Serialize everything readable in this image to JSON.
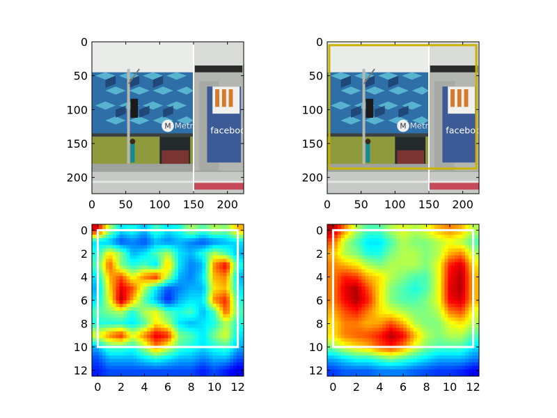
{
  "figure": {
    "panels": 4,
    "layout": "2x2"
  },
  "chart_data": [
    {
      "type": "image",
      "content": "street-photo",
      "scene_labels": [
        "Metro",
        "faceboo"
      ],
      "xlim": [
        0,
        224
      ],
      "ylim": [
        224,
        0
      ],
      "xticks": [
        0,
        50,
        100,
        150,
        200
      ],
      "yticks": [
        0,
        50,
        100,
        150,
        200
      ],
      "xtick_labels": [
        "0",
        "50",
        "100",
        "150",
        "200"
      ],
      "ytick_labels": [
        "0",
        "50",
        "100",
        "150",
        "200"
      ],
      "annotations": [
        {
          "kind": "vline",
          "x": 150,
          "color": "#ffffff"
        }
      ]
    },
    {
      "type": "image",
      "content": "street-photo",
      "scene_labels": [
        "Metro",
        "faceboo"
      ],
      "xlim": [
        0,
        224
      ],
      "ylim": [
        224,
        0
      ],
      "xticks": [
        0,
        50,
        100,
        150,
        200
      ],
      "yticks": [
        0,
        50,
        100,
        150,
        200
      ],
      "xtick_labels": [
        "0",
        "50",
        "100",
        "150",
        "200"
      ],
      "ytick_labels": [
        "0",
        "50",
        "100",
        "150",
        "200"
      ],
      "annotations": [
        {
          "kind": "vline",
          "x": 150,
          "color": "#ffffff"
        },
        {
          "kind": "rect",
          "x0": 3,
          "y0": 5,
          "x1": 220,
          "y1": 187,
          "color": "#c8b400"
        }
      ]
    },
    {
      "type": "heatmap",
      "colormap": "jet",
      "xlim": [
        -0.5,
        12.5
      ],
      "ylim": [
        12.5,
        -0.5
      ],
      "xticks": [
        0,
        2,
        4,
        6,
        8,
        10,
        12
      ],
      "yticks": [
        0,
        2,
        4,
        6,
        8,
        10,
        12
      ],
      "xtick_labels": [
        "0",
        "2",
        "4",
        "6",
        "8",
        "10",
        "12"
      ],
      "ytick_labels": [
        "0",
        "2",
        "4",
        "6",
        "8",
        "10",
        "12"
      ],
      "annotations": [
        {
          "kind": "rect",
          "x0": 0,
          "y0": 0,
          "x1": 12,
          "y1": 10,
          "color": "#ffffff"
        }
      ],
      "values": [
        [
          0.9,
          0.55,
          0.35,
          0.4,
          0.3,
          0.45,
          0.35,
          0.4,
          0.55,
          0.45,
          0.55,
          0.5,
          0.7
        ],
        [
          0.35,
          0.3,
          0.2,
          0.25,
          0.2,
          0.3,
          0.25,
          0.3,
          0.25,
          0.2,
          0.25,
          0.3,
          0.35
        ],
        [
          0.4,
          0.65,
          0.5,
          0.3,
          0.35,
          0.45,
          0.55,
          0.35,
          0.3,
          0.4,
          0.55,
          0.45,
          0.3
        ],
        [
          0.45,
          0.8,
          0.5,
          0.4,
          0.45,
          0.35,
          0.7,
          0.35,
          0.25,
          0.3,
          0.75,
          0.9,
          0.4
        ],
        [
          0.35,
          0.7,
          0.8,
          0.6,
          0.75,
          0.85,
          0.55,
          0.3,
          0.25,
          0.35,
          0.7,
          0.75,
          0.3
        ],
        [
          0.3,
          0.65,
          0.9,
          0.8,
          0.55,
          0.35,
          0.2,
          0.25,
          0.3,
          0.3,
          0.65,
          0.7,
          0.35
        ],
        [
          0.35,
          0.6,
          0.95,
          0.7,
          0.45,
          0.3,
          0.15,
          0.3,
          0.35,
          0.35,
          0.75,
          0.85,
          0.4
        ],
        [
          0.45,
          0.5,
          0.55,
          0.4,
          0.55,
          0.6,
          0.45,
          0.4,
          0.45,
          0.3,
          0.45,
          0.8,
          0.45
        ],
        [
          0.4,
          0.4,
          0.4,
          0.35,
          0.45,
          0.65,
          0.55,
          0.35,
          0.3,
          0.35,
          0.4,
          0.55,
          0.4
        ],
        [
          0.6,
          0.75,
          0.85,
          0.6,
          0.75,
          0.9,
          0.85,
          0.5,
          0.45,
          0.35,
          0.5,
          0.6,
          0.35
        ],
        [
          0.3,
          0.45,
          0.45,
          0.4,
          0.55,
          0.75,
          0.6,
          0.45,
          0.4,
          0.35,
          0.4,
          0.45,
          0.3
        ],
        [
          0.2,
          0.3,
          0.3,
          0.3,
          0.35,
          0.4,
          0.35,
          0.3,
          0.3,
          0.25,
          0.3,
          0.3,
          0.2
        ],
        [
          0.15,
          0.2,
          0.2,
          0.2,
          0.2,
          0.2,
          0.2,
          0.2,
          0.2,
          0.15,
          0.2,
          0.15,
          0.1
        ]
      ]
    },
    {
      "type": "heatmap",
      "colormap": "jet",
      "xlim": [
        -0.5,
        12.5
      ],
      "ylim": [
        12.5,
        -0.5
      ],
      "xticks": [
        0,
        2,
        4,
        6,
        8,
        10,
        12
      ],
      "yticks": [
        0,
        2,
        4,
        6,
        8,
        10,
        12
      ],
      "xtick_labels": [
        "0",
        "2",
        "4",
        "6",
        "8",
        "10",
        "12"
      ],
      "ytick_labels": [
        "0",
        "2",
        "4",
        "6",
        "8",
        "10",
        "12"
      ],
      "annotations": [
        {
          "kind": "rect",
          "x0": 0,
          "y0": 0,
          "x1": 12,
          "y1": 10,
          "color": "#ffffff"
        }
      ],
      "values": [
        [
          0.95,
          0.75,
          0.55,
          0.45,
          0.45,
          0.55,
          0.6,
          0.55,
          0.6,
          0.7,
          0.75,
          0.7,
          0.55
        ],
        [
          0.8,
          0.55,
          0.45,
          0.35,
          0.35,
          0.45,
          0.55,
          0.5,
          0.5,
          0.55,
          0.6,
          0.55,
          0.45
        ],
        [
          0.7,
          0.55,
          0.5,
          0.4,
          0.4,
          0.5,
          0.55,
          0.55,
          0.5,
          0.55,
          0.7,
          0.75,
          0.55
        ],
        [
          0.75,
          0.7,
          0.65,
          0.55,
          0.5,
          0.55,
          0.55,
          0.55,
          0.5,
          0.6,
          0.85,
          0.92,
          0.65
        ],
        [
          0.75,
          0.85,
          0.82,
          0.7,
          0.65,
          0.55,
          0.5,
          0.45,
          0.45,
          0.6,
          0.88,
          0.95,
          0.7
        ],
        [
          0.75,
          0.9,
          0.95,
          0.8,
          0.65,
          0.5,
          0.45,
          0.4,
          0.45,
          0.6,
          0.9,
          0.95,
          0.7
        ],
        [
          0.75,
          0.88,
          0.95,
          0.85,
          0.65,
          0.5,
          0.45,
          0.45,
          0.5,
          0.6,
          0.88,
          0.92,
          0.7
        ],
        [
          0.7,
          0.8,
          0.85,
          0.75,
          0.65,
          0.6,
          0.55,
          0.5,
          0.5,
          0.55,
          0.75,
          0.8,
          0.6
        ],
        [
          0.65,
          0.75,
          0.75,
          0.7,
          0.72,
          0.8,
          0.7,
          0.55,
          0.5,
          0.5,
          0.6,
          0.65,
          0.55
        ],
        [
          0.65,
          0.75,
          0.78,
          0.8,
          0.85,
          0.95,
          0.88,
          0.7,
          0.55,
          0.5,
          0.55,
          0.55,
          0.45
        ],
        [
          0.5,
          0.6,
          0.65,
          0.7,
          0.8,
          0.85,
          0.75,
          0.6,
          0.5,
          0.45,
          0.45,
          0.45,
          0.35
        ],
        [
          0.3,
          0.35,
          0.4,
          0.4,
          0.45,
          0.5,
          0.45,
          0.4,
          0.35,
          0.3,
          0.3,
          0.3,
          0.25
        ],
        [
          0.18,
          0.22,
          0.22,
          0.22,
          0.25,
          0.25,
          0.25,
          0.22,
          0.2,
          0.18,
          0.18,
          0.16,
          0.12
        ]
      ]
    }
  ]
}
